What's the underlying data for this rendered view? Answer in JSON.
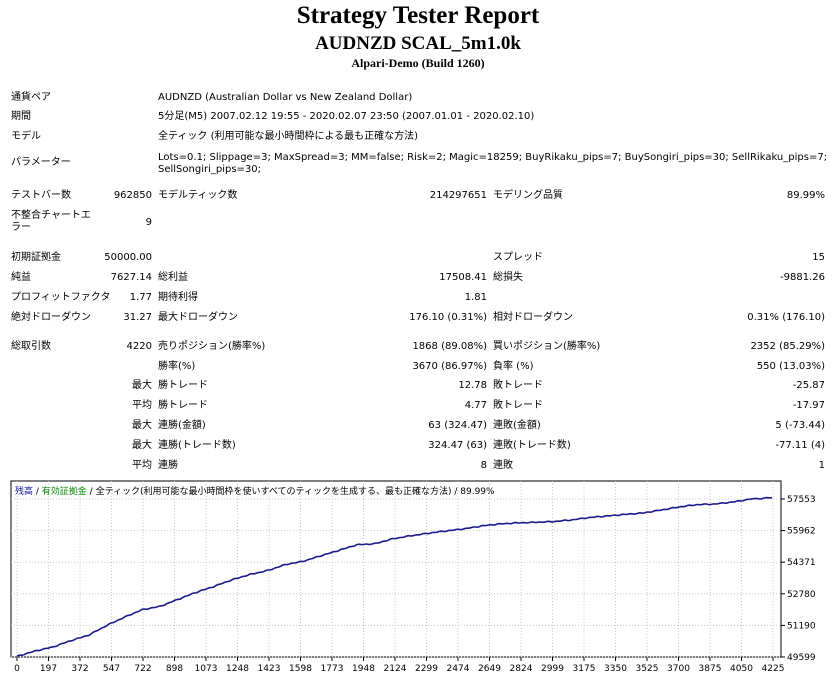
{
  "header": {
    "title": "Strategy Tester Report",
    "subtitle": "AUDNZD SCAL_5m1.0k",
    "server": "Alpari-Demo (Build 1260)"
  },
  "info": {
    "symbol_label": "通貨ペア",
    "symbol_value": "AUDNZD (Australian Dollar vs New Zealand Dollar)",
    "period_label": "期間",
    "period_value": "5分足(M5) 2007.02.12 19:55 - 2020.02.07 23:50 (2007.01.01 - 2020.02.10)",
    "model_label": "モデル",
    "model_value": "全ティック (利用可能な最小時間枠による最も正確な方法)",
    "params_label": "パラメーター",
    "params_value": "Lots=0.1; Slippage=3; MaxSpread=3; MM=false; Risk=2; Magic=18259; BuyRikaku_pips=7; BuySongiri_pips=30; SellRikaku_pips=7; SellSongiri_pips=30;"
  },
  "stats": {
    "bars_label": "テストバー数",
    "bars_value": "962850",
    "ticks_label": "モデルティック数",
    "ticks_value": "214297651",
    "quality_label": "モデリング品質",
    "quality_value": "89.99%",
    "mismatch_label": "不整合チャートエラー",
    "mismatch_value": "9",
    "deposit_label": "初期証拠金",
    "deposit_value": "50000.00",
    "spread_label": "スプレッド",
    "spread_value": "15",
    "netprofit_label": "純益",
    "netprofit_value": "7627.14",
    "grossprofit_label": "総利益",
    "grossprofit_value": "17508.41",
    "grossloss_label": "総損失",
    "grossloss_value": "-9881.26",
    "pf_label": "プロフィットファクタ",
    "pf_value": "1.77",
    "expected_label": "期待利得",
    "expected_value": "1.81",
    "absdd_label": "絶対ドローダウン",
    "absdd_value": "31.27",
    "maxdd_label": "最大ドローダウン",
    "maxdd_value": "176.10 (0.31%)",
    "reldd_label": "相対ドローダウン",
    "reldd_value": "0.31% (176.10)",
    "trades_label": "総取引数",
    "trades_value": "4220",
    "short_label": "売りポジション(勝率%)",
    "short_value": "1868 (89.08%)",
    "long_label": "買いポジション(勝率%)",
    "long_value": "2352 (85.29%)",
    "winpct_label": "勝率(%)",
    "winpct_value": "3670 (86.97%)",
    "losspct_label": "負率 (%)",
    "losspct_value": "550 (13.03%)",
    "max_label": "最大",
    "avg_label": "平均",
    "largest_win_label": "勝トレード",
    "largest_win_value": "12.78",
    "largest_loss_label": "敗トレード",
    "largest_loss_value": "-25.87",
    "avg_win_label": "勝トレード",
    "avg_win_value": "4.77",
    "avg_loss_label": "敗トレード",
    "avg_loss_value": "-17.97",
    "consec_win_label": "連勝(金額)",
    "consec_win_value": "63 (324.47)",
    "consec_loss_label": "連敗(金額)",
    "consec_loss_value": "5 (-73.44)",
    "consec_profit_label": "連勝(トレード数)",
    "consec_profit_value": "324.47 (63)",
    "consec_lossamt_label": "連敗(トレード数)",
    "consec_lossamt_value": "-77.11 (4)",
    "avg_consec_win_label": "連勝",
    "avg_consec_win_value": "8",
    "avg_consec_loss_label": "連敗",
    "avg_consec_loss_value": "1"
  },
  "legend": {
    "balance": "残高",
    "sep1": " / ",
    "equity": "有効証拠金",
    "sep2": " / ",
    "rest": "全ティック(利用可能な最小時間枠を使いすべてのティックを生成する、最も正確な方法) / 89.99%"
  },
  "colors": {
    "line": "#1a1a8a",
    "grid": "#c8c8c8",
    "balance_text": "#1010a0",
    "equity_text": "#0a8a0a"
  },
  "chart_data": {
    "type": "line",
    "x_ticks": [
      "0",
      "197",
      "372",
      "547",
      "722",
      "898",
      "1073",
      "1248",
      "1423",
      "1598",
      "1773",
      "1948",
      "2124",
      "2299",
      "2474",
      "2649",
      "2824",
      "2999",
      "3175",
      "3350",
      "3525",
      "3700",
      "3875",
      "4050",
      "4225"
    ],
    "y_ticks": [
      "57553",
      "55962",
      "54371",
      "52780",
      "51190",
      "49599"
    ],
    "ylim": [
      49599,
      58200
    ],
    "xlim": [
      0,
      4280
    ],
    "series": [
      {
        "name": "残高",
        "x": [
          0,
          100,
          200,
          300,
          400,
          500,
          600,
          700,
          800,
          900,
          1000,
          1100,
          1200,
          1300,
          1400,
          1500,
          1600,
          1700,
          1800,
          1900,
          2000,
          2100,
          2200,
          2300,
          2400,
          2500,
          2600,
          2700,
          2800,
          2900,
          3000,
          3100,
          3200,
          3300,
          3400,
          3500,
          3600,
          3700,
          3800,
          3900,
          4000,
          4100,
          4220
        ],
        "y": [
          49630,
          49900,
          50100,
          50420,
          50700,
          51180,
          51600,
          51980,
          52150,
          52500,
          52850,
          53150,
          53480,
          53750,
          53950,
          54250,
          54420,
          54700,
          54970,
          55250,
          55300,
          55550,
          55700,
          55830,
          55950,
          56050,
          56200,
          56300,
          56350,
          56380,
          56420,
          56500,
          56620,
          56700,
          56780,
          56850,
          57000,
          57150,
          57270,
          57300,
          57400,
          57550,
          57620
        ]
      }
    ]
  }
}
